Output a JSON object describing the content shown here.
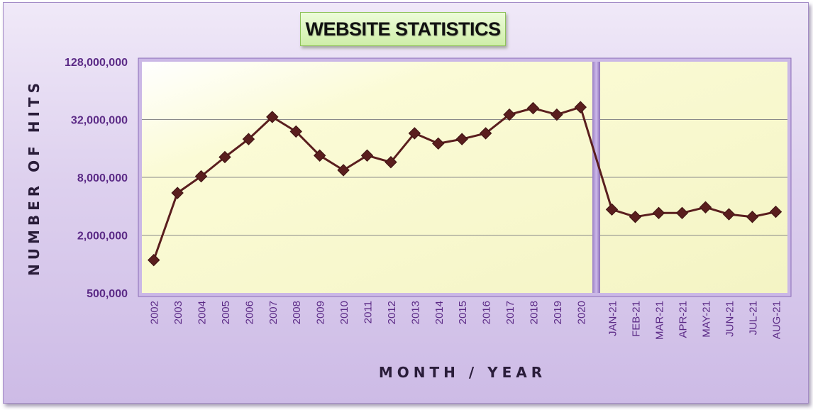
{
  "chart_data": {
    "type": "line",
    "title": "WEBSITE STATISTICS",
    "xlabel": "MONTH / YEAR",
    "ylabel": "NUMBER OF HITS",
    "y_scale": "log2",
    "ylim": [
      500000,
      128000000
    ],
    "y_ticks": [
      {
        "value": 500000,
        "label": "500,000"
      },
      {
        "value": 2000000,
        "label": "2,000,000"
      },
      {
        "value": 8000000,
        "label": "8,000,000"
      },
      {
        "value": 32000000,
        "label": "32,000,000"
      },
      {
        "value": 128000000,
        "label": "128,000,000"
      }
    ],
    "grid": true,
    "categories": [
      "2002",
      "2003",
      "2004",
      "2005",
      "2006",
      "2007",
      "2008",
      "2009",
      "2010",
      "2011",
      "2012",
      "2013",
      "2014",
      "2015",
      "2016",
      "2017",
      "2018",
      "2019",
      "2020",
      "JAN-21",
      "FEB-21",
      "MAR-21",
      "APR-21",
      "MAY-21",
      "JUN-21",
      "JUL-21",
      "AUG-21"
    ],
    "series": [
      {
        "name": "",
        "color": "#5a1e1e",
        "values": [
          1100000,
          5500000,
          8200000,
          13000000,
          20000000,
          34000000,
          24000000,
          13500000,
          9500000,
          13500000,
          11500000,
          23000000,
          18000000,
          20000000,
          23000000,
          36000000,
          42000000,
          36000000,
          43000000,
          3700000,
          3100000,
          3400000,
          3400000,
          3900000,
          3300000,
          3100000,
          3500000
        ]
      }
    ],
    "divider_after_category": "2020"
  },
  "colors": {
    "plot_bg": "#fdfdd8",
    "line": "#5a1e1e",
    "tick_text": "#5b2a86",
    "frame_border": "#7a5aa5"
  }
}
